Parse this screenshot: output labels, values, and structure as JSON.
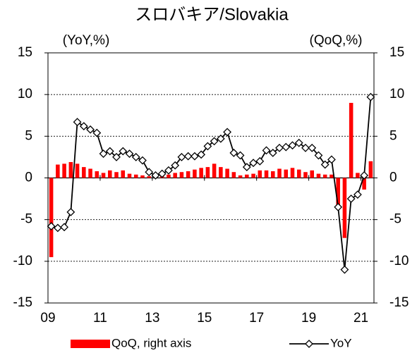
{
  "chart_data": {
    "type": "bar_line",
    "title": "スロバキア/Slovakia",
    "y_label": "(YoY,%)",
    "y2_label": "(QoQ,%)",
    "categories": [
      "09",
      null,
      null,
      null,
      null,
      null,
      null,
      null,
      "11",
      null,
      null,
      null,
      null,
      null,
      null,
      null,
      "13",
      null,
      null,
      null,
      null,
      null,
      null,
      null,
      "15",
      null,
      null,
      null,
      null,
      null,
      null,
      null,
      "17",
      null,
      null,
      null,
      null,
      null,
      null,
      null,
      "19",
      null,
      null,
      null,
      null,
      null,
      null,
      null,
      "21",
      null
    ],
    "series": [
      {
        "name": "QoQ, right axis",
        "type": "bar",
        "axis": "y2",
        "color": "#ff0000",
        "values": [
          -9.5,
          1.6,
          1.7,
          1.9,
          1.7,
          1.3,
          1.1,
          0.8,
          0.6,
          0.9,
          0.7,
          0.9,
          0.5,
          0.4,
          0.3,
          0.2,
          0.2,
          0.3,
          0.4,
          0.6,
          0.7,
          0.8,
          1.0,
          1.2,
          1.3,
          1.7,
          1.3,
          1.1,
          0.7,
          0.3,
          0.4,
          0.5,
          0.9,
          0.9,
          0.8,
          1.1,
          1.0,
          1.2,
          1.0,
          0.7,
          0.9,
          0.5,
          0.4,
          0.4,
          -3.8,
          -7.2,
          9.0,
          0.6,
          -1.4,
          2.0
        ]
      },
      {
        "name": "YoY",
        "type": "line",
        "color": "#000000",
        "values": [
          -5.8,
          -6.0,
          -5.9,
          -4.1,
          6.7,
          6.2,
          5.8,
          5.4,
          2.9,
          3.2,
          2.5,
          3.2,
          2.9,
          2.5,
          2.1,
          0.7,
          0.3,
          0.5,
          0.9,
          1.5,
          2.5,
          2.6,
          2.6,
          2.8,
          3.8,
          4.4,
          4.7,
          5.5,
          3.0,
          2.7,
          1.3,
          1.8,
          2.0,
          3.3,
          3.0,
          3.6,
          3.7,
          3.9,
          4.2,
          3.6,
          3.6,
          2.7,
          1.6,
          2.2,
          -3.5,
          -11.0,
          -2.5,
          -2.0,
          0.3,
          9.7
        ]
      }
    ],
    "ylim": [
      -15,
      15
    ],
    "yticks": [
      -15,
      -10,
      -5,
      0,
      5,
      10,
      15
    ],
    "y2lim": [
      -15,
      15
    ],
    "y2ticks": [
      -15,
      -10,
      -5,
      0,
      5,
      10,
      15
    ],
    "grid": true
  }
}
